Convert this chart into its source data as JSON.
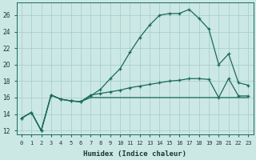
{
  "xlabel": "Humidex (Indice chaleur)",
  "background_color": "#cce8e4",
  "grid_color": "#a0ccc8",
  "line_color": "#1a6b5a",
  "xlim": [
    -0.5,
    23.5
  ],
  "ylim": [
    11.5,
    27.5
  ],
  "yticks": [
    12,
    14,
    16,
    18,
    20,
    22,
    24,
    26
  ],
  "xtick_labels": [
    "0",
    "1",
    "2",
    "3",
    "4",
    "5",
    "6",
    "7",
    "8",
    "9",
    "10",
    "11",
    "12",
    "13",
    "14",
    "15",
    "16",
    "17",
    "18",
    "19",
    "20",
    "21",
    "22",
    "23"
  ],
  "series1": [
    13.5,
    14.2,
    12.0,
    16.3,
    15.8,
    15.6,
    15.5,
    16.2,
    17.0,
    18.3,
    19.5,
    21.5,
    23.3,
    24.8,
    26.0,
    26.2,
    26.2,
    26.7,
    25.6,
    24.3,
    20.0,
    21.3,
    17.8,
    17.5
  ],
  "series2": [
    13.5,
    14.2,
    12.0,
    16.3,
    15.8,
    15.6,
    15.5,
    16.3,
    16.5,
    16.7,
    16.9,
    17.2,
    17.4,
    17.6,
    17.8,
    18.0,
    18.1,
    18.3,
    18.3,
    18.2,
    16.0,
    18.3,
    16.2,
    16.2
  ],
  "series3": [
    13.5,
    14.2,
    12.0,
    16.3,
    15.8,
    15.6,
    15.5,
    16.0,
    16.0,
    16.0,
    16.0,
    16.0,
    16.0,
    16.0,
    16.0,
    16.0,
    16.0,
    16.0,
    16.0,
    16.0,
    16.0,
    16.0,
    16.0,
    16.0
  ]
}
